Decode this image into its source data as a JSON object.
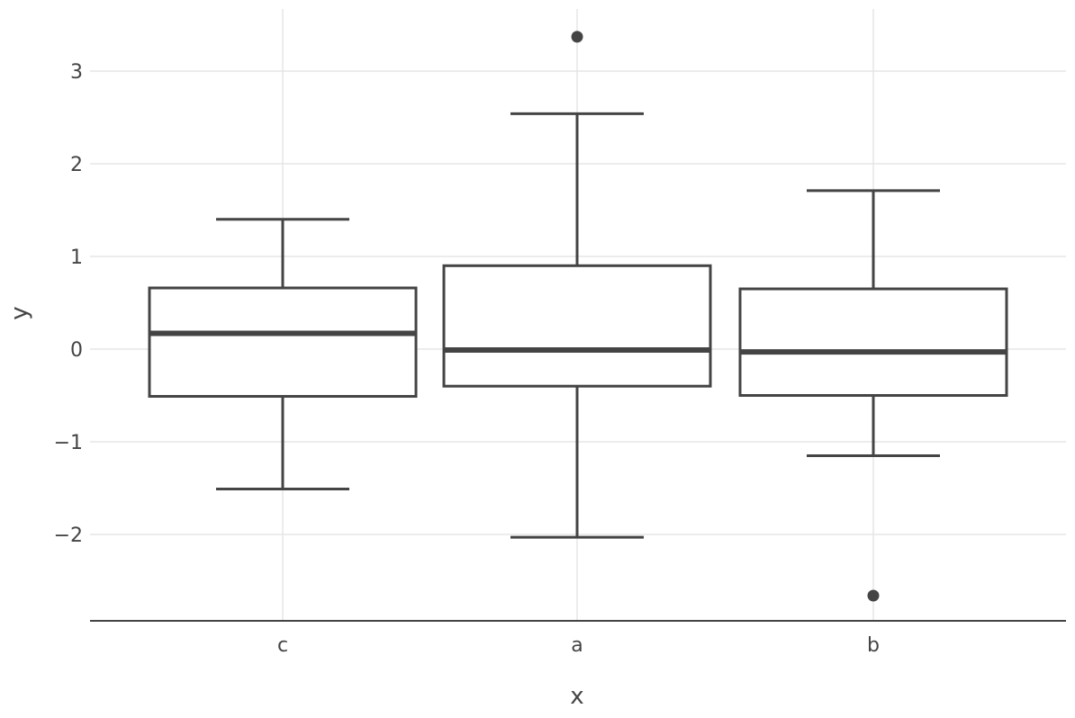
{
  "chart_data": {
    "type": "box",
    "title": "",
    "xlabel": "x",
    "ylabel": "y",
    "categories": [
      "c",
      "a",
      "b"
    ],
    "ylim": [
      -2.9,
      3.7
    ],
    "yticks": [
      -2,
      -1,
      0,
      1,
      2,
      3
    ],
    "ytick_labels": [
      "−2",
      "−1",
      "0",
      "1",
      "2",
      "3"
    ],
    "grid": true,
    "colors": {
      "box_stroke": "#444444",
      "grid": "#e5e5e5",
      "axis": "#444444",
      "text": "#444444"
    },
    "boxes": [
      {
        "category": "c",
        "lower_whisker": -1.51,
        "q1": -0.51,
        "median": 0.17,
        "q3": 0.66,
        "upper_whisker": 1.4,
        "outliers": []
      },
      {
        "category": "a",
        "lower_whisker": -2.03,
        "q1": -0.4,
        "median": -0.01,
        "q3": 0.9,
        "upper_whisker": 2.54,
        "outliers": [
          3.37
        ]
      },
      {
        "category": "b",
        "lower_whisker": -1.15,
        "q1": -0.5,
        "median": -0.03,
        "q3": 0.65,
        "upper_whisker": 1.71,
        "outliers": [
          -2.66
        ]
      }
    ]
  }
}
